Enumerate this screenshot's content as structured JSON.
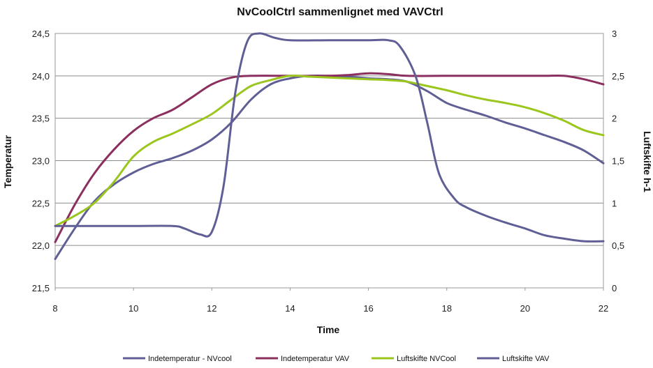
{
  "chart_data": {
    "type": "line",
    "title": "NvCoolCtrl sammenlignet med VAVCtrl",
    "xlabel": "Time",
    "ylabel_left": "Temperatur",
    "ylabel_right": "Luftskifte h-1",
    "xlim": [
      8,
      22
    ],
    "ylim_left": [
      21.5,
      24.5
    ],
    "ylim_right": [
      0,
      3
    ],
    "x_ticks": [
      "8",
      "10",
      "12",
      "14",
      "16",
      "18",
      "20",
      "22"
    ],
    "y_left_ticks": [
      "21,5",
      "22,0",
      "22,5",
      "23,0",
      "23,5",
      "24,0",
      "24,5"
    ],
    "y_right_ticks": [
      "0",
      "0,5",
      "1",
      "1,5",
      "2",
      "2,5",
      "3"
    ],
    "grid": "horizontal",
    "legend": "bottom",
    "series": [
      {
        "name": "Indetemperatur - NVcool",
        "axis": "left",
        "color": "#5f5f96",
        "points": [
          [
            8,
            21.84
          ],
          [
            8.5,
            22.2
          ],
          [
            9,
            22.52
          ],
          [
            9.5,
            22.72
          ],
          [
            10,
            22.86
          ],
          [
            10.5,
            22.96
          ],
          [
            11,
            23.03
          ],
          [
            11.5,
            23.12
          ],
          [
            12,
            23.25
          ],
          [
            12.5,
            23.45
          ],
          [
            13,
            23.72
          ],
          [
            13.5,
            23.9
          ],
          [
            14,
            23.97
          ],
          [
            14.5,
            24.0
          ],
          [
            15,
            24.0
          ],
          [
            15.5,
            23.99
          ],
          [
            16,
            23.97
          ],
          [
            16.5,
            23.96
          ],
          [
            17,
            23.93
          ],
          [
            17.5,
            23.82
          ],
          [
            18,
            23.68
          ],
          [
            18.5,
            23.6
          ],
          [
            19,
            23.53
          ],
          [
            19.5,
            23.45
          ],
          [
            20,
            23.38
          ],
          [
            20.5,
            23.3
          ],
          [
            21,
            23.22
          ],
          [
            21.5,
            23.12
          ],
          [
            22,
            22.97
          ]
        ]
      },
      {
        "name": "Indetemperatur VAV",
        "axis": "left",
        "color": "#8b2f5e",
        "points": [
          [
            8,
            22.04
          ],
          [
            8.5,
            22.48
          ],
          [
            9,
            22.85
          ],
          [
            9.5,
            23.13
          ],
          [
            10,
            23.35
          ],
          [
            10.5,
            23.5
          ],
          [
            11,
            23.6
          ],
          [
            11.5,
            23.75
          ],
          [
            12,
            23.9
          ],
          [
            12.5,
            23.98
          ],
          [
            13,
            24.0
          ],
          [
            14,
            24.0
          ],
          [
            15,
            24.0
          ],
          [
            15.5,
            24.01
          ],
          [
            16,
            24.03
          ],
          [
            16.5,
            24.02
          ],
          [
            17,
            24.0
          ],
          [
            18,
            24.0
          ],
          [
            19,
            24.0
          ],
          [
            20,
            24.0
          ],
          [
            20.5,
            24.0
          ],
          [
            21,
            24.0
          ],
          [
            21.5,
            23.96
          ],
          [
            22,
            23.9
          ]
        ]
      },
      {
        "name": "Luftskifte NVCool",
        "axis": "right",
        "color": "#9bc61e",
        "points": [
          [
            8,
            0.73
          ],
          [
            8.5,
            0.85
          ],
          [
            9,
            1.0
          ],
          [
            9.5,
            1.25
          ],
          [
            10,
            1.55
          ],
          [
            10.5,
            1.72
          ],
          [
            11,
            1.82
          ],
          [
            11.5,
            1.93
          ],
          [
            12,
            2.05
          ],
          [
            12.5,
            2.22
          ],
          [
            13,
            2.38
          ],
          [
            13.5,
            2.45
          ],
          [
            14,
            2.5
          ],
          [
            14.5,
            2.49
          ],
          [
            15,
            2.48
          ],
          [
            15.5,
            2.47
          ],
          [
            16,
            2.46
          ],
          [
            16.5,
            2.45
          ],
          [
            17,
            2.43
          ],
          [
            17.5,
            2.38
          ],
          [
            18,
            2.33
          ],
          [
            18.5,
            2.27
          ],
          [
            19,
            2.22
          ],
          [
            19.5,
            2.18
          ],
          [
            20,
            2.13
          ],
          [
            20.5,
            2.06
          ],
          [
            21,
            1.97
          ],
          [
            21.5,
            1.86
          ],
          [
            22,
            1.8
          ]
        ]
      },
      {
        "name": "Luftskifte VAV",
        "axis": "right",
        "color": "#5f5f96",
        "points": [
          [
            8,
            0.73
          ],
          [
            9,
            0.73
          ],
          [
            10,
            0.73
          ],
          [
            11,
            0.73
          ],
          [
            11.3,
            0.7
          ],
          [
            11.7,
            0.63
          ],
          [
            12,
            0.66
          ],
          [
            12.3,
            1.2
          ],
          [
            12.6,
            2.3
          ],
          [
            12.9,
            2.9
          ],
          [
            13.2,
            3.0
          ],
          [
            13.6,
            2.95
          ],
          [
            14,
            2.92
          ],
          [
            15,
            2.92
          ],
          [
            16,
            2.92
          ],
          [
            16.5,
            2.92
          ],
          [
            16.8,
            2.85
          ],
          [
            17.2,
            2.5
          ],
          [
            17.5,
            1.95
          ],
          [
            17.8,
            1.35
          ],
          [
            18.2,
            1.05
          ],
          [
            18.5,
            0.95
          ],
          [
            19,
            0.85
          ],
          [
            19.5,
            0.77
          ],
          [
            20,
            0.7
          ],
          [
            20.5,
            0.62
          ],
          [
            21,
            0.58
          ],
          [
            21.5,
            0.55
          ],
          [
            22,
            0.55
          ]
        ]
      }
    ]
  }
}
